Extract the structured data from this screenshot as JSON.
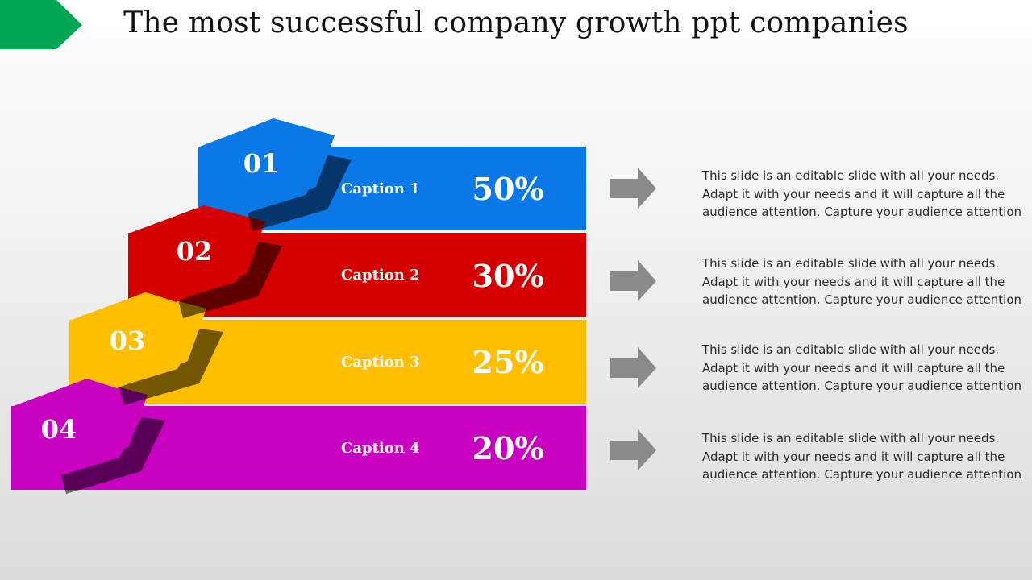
{
  "title": "The most successful company growth ppt companies",
  "colors": {
    "accent_corner": "#00a651",
    "step_1": "#0b78e8",
    "step_2": "#d40000",
    "step_3": "#ffbe00",
    "step_4": "#c800c0",
    "arrow": "#8a8a8a"
  },
  "icons": {
    "arrow": "right-arrow-icon",
    "corner": "corner-chevron-icon"
  },
  "steps": [
    {
      "number": "01",
      "caption": "Caption 1",
      "percent": "50%",
      "description": "This slide is an editable slide with all your needs. Adapt it with your needs and it will capture all the audience attention. Capture your audience attention"
    },
    {
      "number": "02",
      "caption": "Caption 2",
      "percent": "30%",
      "description": "This slide is an editable slide with all your needs. Adapt it with your needs and it will capture all the audience attention. Capture your audience attention"
    },
    {
      "number": "03",
      "caption": "Caption 3",
      "percent": "25%",
      "description": "This slide is an editable slide with all your needs. Adapt it with your needs and it will capture all the audience attention. Capture your audience attention"
    },
    {
      "number": "04",
      "caption": "Caption 4",
      "percent": "20%",
      "description": "This slide is an editable slide with all your needs. Adapt it with your needs and it will capture all the audience attention. Capture your audience attention"
    }
  ]
}
